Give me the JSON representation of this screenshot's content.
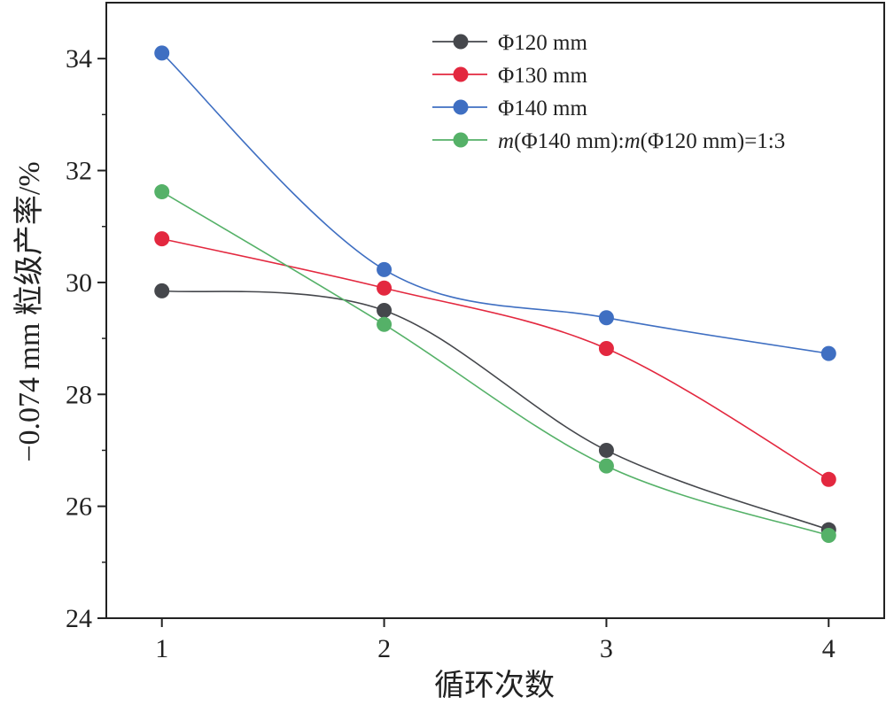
{
  "chart_data": {
    "type": "line",
    "xlabel": "循环次数",
    "ylabel": "−0.074 mm 粒级产率/%",
    "x": [
      1,
      2,
      3,
      4
    ],
    "x_ticks": [
      "1",
      "2",
      "3",
      "4"
    ],
    "y_ticks": [
      "24",
      "26",
      "28",
      "30",
      "32",
      "34"
    ],
    "xlim": [
      0.75,
      4.25
    ],
    "ylim": [
      24,
      35
    ],
    "grid": false,
    "legend_position": "top-right",
    "series": [
      {
        "name": "Φ120 mm",
        "color": "#45474c",
        "values": [
          29.85,
          29.5,
          27.0,
          25.58
        ]
      },
      {
        "name": "Φ130 mm",
        "color": "#e3283f",
        "values": [
          30.78,
          29.9,
          28.82,
          26.48
        ]
      },
      {
        "name": "Φ140 mm",
        "color": "#3f6fc2",
        "values": [
          34.1,
          30.23,
          29.37,
          28.73
        ]
      },
      {
        "name": "m(Φ140 mm):m(Φ120 mm)=1:3",
        "color": "#55b168",
        "values": [
          31.62,
          29.25,
          26.72,
          25.48
        ]
      }
    ]
  }
}
